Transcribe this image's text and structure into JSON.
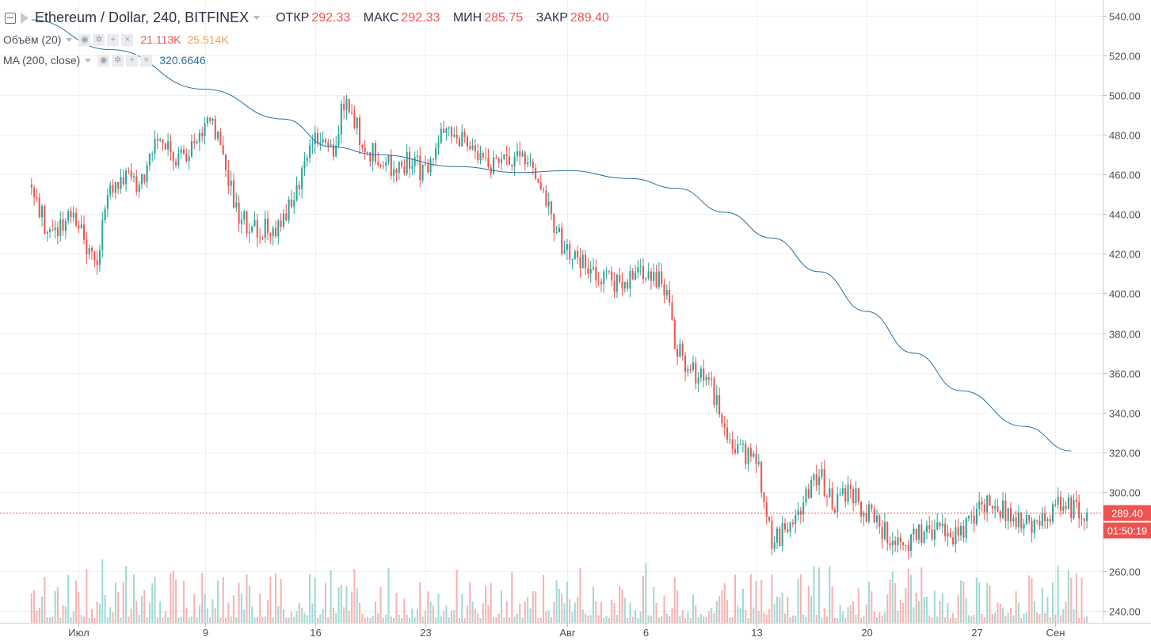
{
  "header": {
    "title": "Ethereum / Dollar, 240, BITFINEX",
    "ohlc": [
      {
        "label": "ОТКР",
        "value": "292.33"
      },
      {
        "label": "МАКС",
        "value": "292.33"
      },
      {
        "label": "МИН",
        "value": "285.75"
      },
      {
        "label": "ЗАКР",
        "value": "289.40"
      }
    ]
  },
  "indicators": [
    {
      "name": "Объём (20)",
      "values": [
        {
          "text": "21.113K",
          "color": "#ef5350"
        },
        {
          "text": "25.514K",
          "color": "#f0a05b"
        }
      ]
    },
    {
      "name": "MA (200, close)",
      "values": [
        {
          "text": "320.6646",
          "color": "#2a6f9e"
        }
      ]
    }
  ],
  "price_axis": {
    "last_price_label": "289.40",
    "countdown": "01:50:19",
    "ticks": [
      "540.00",
      "520.00",
      "500.00",
      "480.00",
      "460.00",
      "440.00",
      "420.00",
      "400.00",
      "380.00",
      "360.00",
      "340.00",
      "320.00",
      "300.00",
      "260.00",
      "240.00"
    ]
  },
  "time_axis": {
    "ticks": [
      "Июл",
      "9",
      "16",
      "23",
      "Авг",
      "6",
      "13",
      "20",
      "27",
      "Сен"
    ]
  },
  "colors": {
    "up": "#26a69a",
    "down": "#ef5350",
    "up_volume": "#8fd3cc",
    "down_volume": "#f4a6a4",
    "ma": "#2a6f9e",
    "grid": "#eef0f3"
  },
  "chart_data": {
    "type": "candlestick",
    "symbol": "ETHUSD",
    "interval": "240",
    "exchange": "BITFINEX",
    "ylim": [
      234,
      548
    ],
    "last_price": 289.4,
    "price_ticks": [
      540,
      520,
      500,
      480,
      460,
      440,
      420,
      400,
      380,
      360,
      340,
      320,
      300,
      260,
      240
    ],
    "date_ticks": [
      {
        "label": "Июл",
        "date": "2018-07-01"
      },
      {
        "label": "9",
        "date": "2018-07-09"
      },
      {
        "label": "16",
        "date": "2018-07-16"
      },
      {
        "label": "23",
        "date": "2018-07-23"
      },
      {
        "label": "Авг",
        "date": "2018-08-01"
      },
      {
        "label": "6",
        "date": "2018-08-06"
      },
      {
        "label": "13",
        "date": "2018-08-13"
      },
      {
        "label": "20",
        "date": "2018-08-20"
      },
      {
        "label": "27",
        "date": "2018-08-27"
      },
      {
        "label": "Сен",
        "date": "2018-09-01"
      }
    ],
    "price_path": [
      [
        "2018-06-28",
        455
      ],
      [
        "2018-06-29",
        430
      ],
      [
        "2018-06-30",
        435
      ],
      [
        "2018-07-01",
        438
      ],
      [
        "2018-07-02",
        412
      ],
      [
        "2018-07-03",
        455
      ],
      [
        "2018-07-04",
        460
      ],
      [
        "2018-07-05",
        455
      ],
      [
        "2018-07-06",
        480
      ],
      [
        "2018-07-07",
        470
      ],
      [
        "2018-07-08",
        470
      ],
      [
        "2018-07-09",
        488
      ],
      [
        "2018-07-10",
        478
      ],
      [
        "2018-07-11",
        442
      ],
      [
        "2018-07-12",
        432
      ],
      [
        "2018-07-13",
        432
      ],
      [
        "2018-07-14",
        436
      ],
      [
        "2018-07-15",
        458
      ],
      [
        "2018-07-16",
        478
      ],
      [
        "2018-07-17",
        470
      ],
      [
        "2018-07-18",
        500
      ],
      [
        "2018-07-19",
        475
      ],
      [
        "2018-07-20",
        468
      ],
      [
        "2018-07-21",
        462
      ],
      [
        "2018-07-22",
        468
      ],
      [
        "2018-07-23",
        460
      ],
      [
        "2018-07-24",
        478
      ],
      [
        "2018-07-25",
        478
      ],
      [
        "2018-07-26",
        472
      ],
      [
        "2018-07-27",
        463
      ],
      [
        "2018-07-28",
        467
      ],
      [
        "2018-07-29",
        466
      ],
      [
        "2018-07-30",
        463
      ],
      [
        "2018-07-31",
        436
      ],
      [
        "2018-08-01",
        420
      ],
      [
        "2018-08-02",
        414
      ],
      [
        "2018-08-03",
        410
      ],
      [
        "2018-08-04",
        406
      ],
      [
        "2018-08-05",
        408
      ],
      [
        "2018-08-06",
        408
      ],
      [
        "2018-08-07",
        408
      ],
      [
        "2018-08-08",
        372
      ],
      [
        "2018-08-09",
        360
      ],
      [
        "2018-08-10",
        358
      ],
      [
        "2018-08-11",
        330
      ],
      [
        "2018-08-12",
        320
      ],
      [
        "2018-08-13",
        318
      ],
      [
        "2018-08-14",
        272
      ],
      [
        "2018-08-15",
        283
      ],
      [
        "2018-08-16",
        295
      ],
      [
        "2018-08-17",
        308
      ],
      [
        "2018-08-18",
        294
      ],
      [
        "2018-08-19",
        300
      ],
      [
        "2018-08-20",
        290
      ],
      [
        "2018-08-21",
        282
      ],
      [
        "2018-08-22",
        275
      ],
      [
        "2018-08-23",
        276
      ],
      [
        "2018-08-24",
        281
      ],
      [
        "2018-08-25",
        281
      ],
      [
        "2018-08-26",
        278
      ],
      [
        "2018-08-27",
        292
      ],
      [
        "2018-08-28",
        295
      ],
      [
        "2018-08-29",
        290
      ],
      [
        "2018-08-30",
        285
      ],
      [
        "2018-08-31",
        282
      ],
      [
        "2018-09-01",
        295
      ],
      [
        "2018-09-02",
        291
      ],
      [
        "2018-09-03",
        289.4
      ]
    ],
    "ma200_path": [
      [
        "2018-06-28",
        538
      ],
      [
        "2018-07-03",
        523
      ],
      [
        "2018-07-09",
        503
      ],
      [
        "2018-07-14",
        488
      ],
      [
        "2018-07-17",
        474
      ],
      [
        "2018-07-20",
        470
      ],
      [
        "2018-07-25",
        464
      ],
      [
        "2018-07-29",
        461
      ],
      [
        "2018-08-01",
        462
      ],
      [
        "2018-08-05",
        458
      ],
      [
        "2018-08-08",
        453
      ],
      [
        "2018-08-11",
        441
      ],
      [
        "2018-08-14",
        428
      ],
      [
        "2018-08-17",
        411
      ],
      [
        "2018-08-20",
        391
      ],
      [
        "2018-08-23",
        370
      ],
      [
        "2018-08-26",
        351
      ],
      [
        "2018-08-30",
        333
      ],
      [
        "2018-09-02",
        320.66
      ]
    ]
  }
}
